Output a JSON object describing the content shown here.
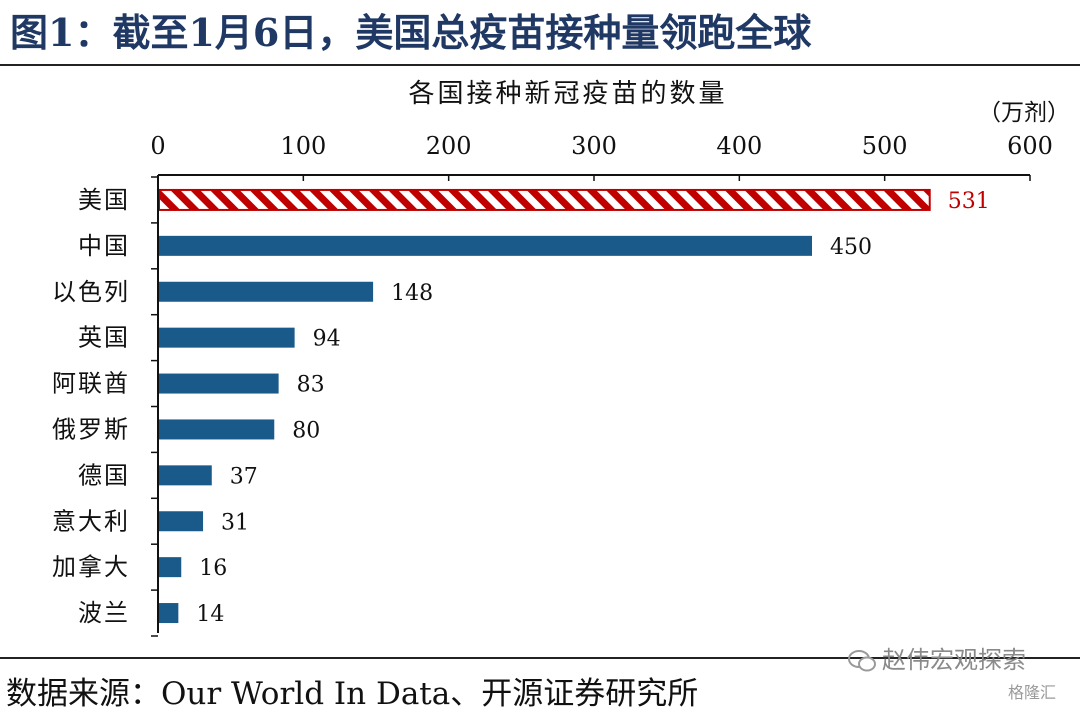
{
  "figure": {
    "title": "图1：截至1月6日，美国总疫苗接种量领跑全球",
    "source": "数据来源：Our World In Data、开源证券研究所",
    "watermark": "赵伟宏观探索",
    "watermark2": "格隆汇"
  },
  "chart_data": {
    "type": "bar",
    "orientation": "horizontal",
    "title": "各国接种新冠疫苗的数量",
    "unit_label": "（万剂）",
    "xlim": [
      0,
      600
    ],
    "x_ticks": [
      0,
      100,
      200,
      300,
      400,
      500,
      600
    ],
    "categories": [
      "美国",
      "中国",
      "以色列",
      "英国",
      "阿联酋",
      "俄罗斯",
      "德国",
      "意大利",
      "加拿大",
      "波兰"
    ],
    "values": [
      531,
      450,
      148,
      94,
      83,
      80,
      37,
      31,
      16,
      14
    ],
    "highlight_index": 0,
    "colors": {
      "bar": "#1a5a8a",
      "highlight": "#c00000",
      "highlight_label": "#c00000",
      "title": "#1f3864"
    },
    "grid": false,
    "axis_position": "top"
  }
}
